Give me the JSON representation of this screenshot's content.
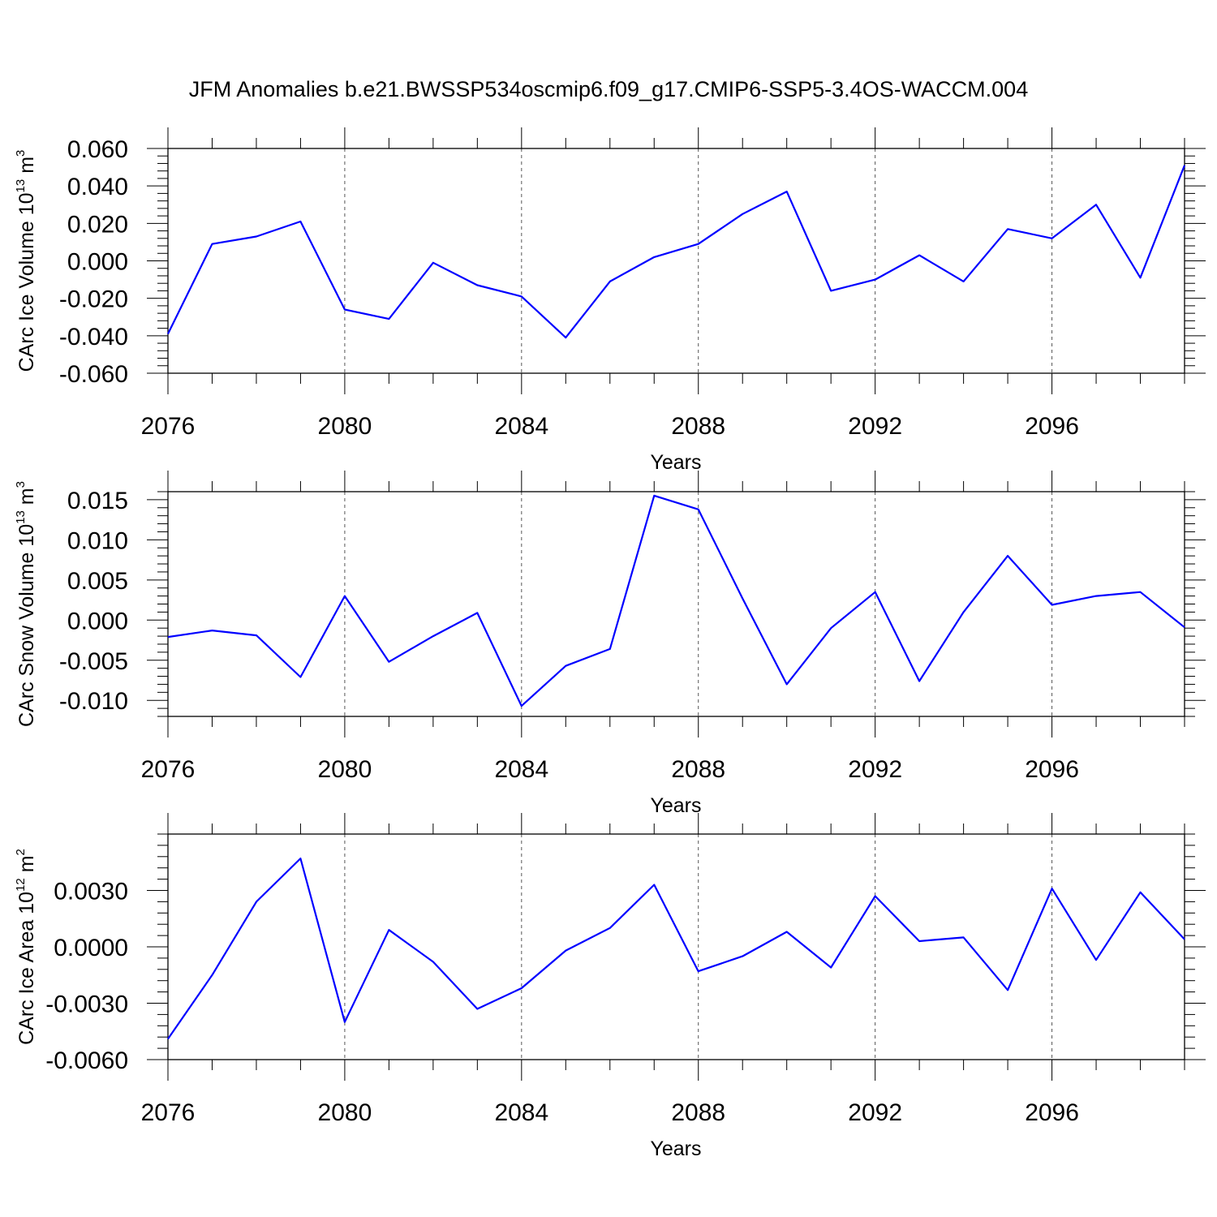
{
  "title": "JFM Anomalies b.e21.BWSSP534oscmip6.f09_g17.CMIP6-SSP5-3.4OS-WACCM.004",
  "chart_data": [
    {
      "type": "line",
      "ylabel": "CArc Ice Volume 10",
      "ylabel_exp": "13",
      "ylabel_unit": " m",
      "ylabel_unit_exp": "3",
      "xlabel": "Years",
      "xlim": [
        2076,
        2099
      ],
      "ylim": [
        -0.06,
        0.06
      ],
      "x_ticks": [
        2076,
        2080,
        2084,
        2088,
        2092,
        2096
      ],
      "x_tick_labels": [
        "2076",
        "2080",
        "2084",
        "2088",
        "2092",
        "2096"
      ],
      "y_ticks": [
        -0.06,
        -0.04,
        -0.02,
        0.0,
        0.02,
        0.04,
        0.06
      ],
      "y_tick_labels": [
        "-0.060",
        "-0.040",
        "-0.020",
        "0.000",
        "0.020",
        "0.040",
        "0.060"
      ],
      "grid": "vertical dashed at major x ticks",
      "color": "#0000ff",
      "series": [
        {
          "x": [
            2076,
            2077,
            2078,
            2079,
            2080,
            2081,
            2082,
            2083,
            2084,
            2085,
            2086,
            2087,
            2088,
            2089,
            2090,
            2091,
            2092,
            2093,
            2094,
            2095,
            2096,
            2097,
            2098,
            2099
          ],
          "values": [
            -0.039,
            0.009,
            0.013,
            0.021,
            -0.026,
            -0.031,
            -0.001,
            -0.013,
            -0.019,
            -0.041,
            -0.011,
            0.002,
            0.009,
            0.025,
            0.037,
            -0.016,
            -0.01,
            0.003,
            -0.011,
            0.017,
            0.012,
            0.03,
            -0.009,
            0.051
          ]
        }
      ]
    },
    {
      "type": "line",
      "ylabel": "CArc Snow Volume 10",
      "ylabel_exp": "13",
      "ylabel_unit": " m",
      "ylabel_unit_exp": "3",
      "xlabel": "Years",
      "xlim": [
        2076,
        2099
      ],
      "ylim": [
        -0.012,
        0.016
      ],
      "x_ticks": [
        2076,
        2080,
        2084,
        2088,
        2092,
        2096
      ],
      "x_tick_labels": [
        "2076",
        "2080",
        "2084",
        "2088",
        "2092",
        "2096"
      ],
      "y_ticks": [
        -0.01,
        -0.005,
        0.0,
        0.005,
        0.01,
        0.015
      ],
      "y_tick_labels": [
        "-0.010",
        "-0.005",
        "0.000",
        "0.005",
        "0.010",
        "0.015"
      ],
      "grid": "vertical dashed at major x ticks",
      "color": "#0000ff",
      "series": [
        {
          "x": [
            2076,
            2077,
            2078,
            2079,
            2080,
            2081,
            2082,
            2083,
            2084,
            2085,
            2086,
            2087,
            2088,
            2089,
            2090,
            2091,
            2092,
            2093,
            2094,
            2095,
            2096,
            2097,
            2098,
            2099
          ],
          "values": [
            -0.0021,
            -0.0013,
            -0.0019,
            -0.0071,
            0.003,
            -0.0052,
            -0.002,
            0.0009,
            -0.0107,
            -0.0057,
            -0.0036,
            0.0155,
            0.0138,
            0.0027,
            -0.008,
            -0.001,
            0.0035,
            -0.0076,
            0.001,
            0.008,
            0.0019,
            0.003,
            0.0035,
            -0.0009
          ]
        }
      ]
    },
    {
      "type": "line",
      "ylabel": "CArc Ice Area 10",
      "ylabel_exp": "12",
      "ylabel_unit": " m",
      "ylabel_unit_exp": "2",
      "xlabel": "Years",
      "xlim": [
        2076,
        2099
      ],
      "ylim": [
        -0.006,
        0.006
      ],
      "x_ticks": [
        2076,
        2080,
        2084,
        2088,
        2092,
        2096
      ],
      "x_tick_labels": [
        "2076",
        "2080",
        "2084",
        "2088",
        "2092",
        "2096"
      ],
      "y_ticks": [
        -0.006,
        -0.003,
        0.0,
        0.003
      ],
      "y_tick_labels": [
        "-0.0060",
        "-0.0030",
        "0.0000",
        "0.0030"
      ],
      "grid": "vertical dashed at major x ticks",
      "color": "#0000ff",
      "series": [
        {
          "x": [
            2076,
            2077,
            2078,
            2079,
            2080,
            2081,
            2082,
            2083,
            2084,
            2085,
            2086,
            2087,
            2088,
            2089,
            2090,
            2091,
            2092,
            2093,
            2094,
            2095,
            2096,
            2097,
            2098,
            2099
          ],
          "values": [
            -0.0049,
            -0.0015,
            0.0024,
            0.0047,
            -0.004,
            0.0009,
            -0.0008,
            -0.0033,
            -0.0022,
            -0.0002,
            0.001,
            0.0033,
            -0.0013,
            -0.0005,
            0.0008,
            -0.0011,
            0.0027,
            0.0003,
            0.0005,
            -0.0023,
            0.0031,
            -0.0007,
            0.0029,
            0.0004
          ]
        }
      ]
    }
  ]
}
